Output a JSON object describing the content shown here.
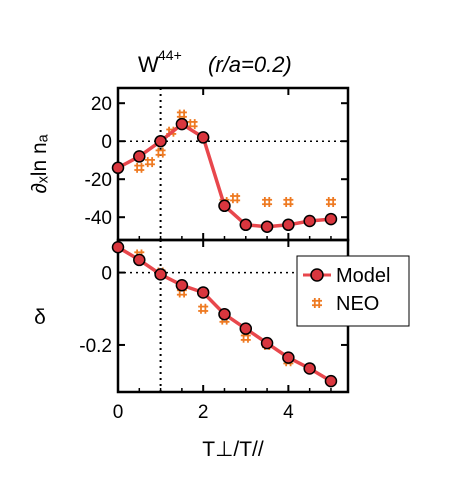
{
  "title": {
    "main": "W",
    "superscript": "44+",
    "qualifier": "(r/a=0.2)"
  },
  "colors": {
    "model_line": "#e8474c",
    "model_marker_fill": "#d9363e",
    "neo_marker": "#ee7a22",
    "axes": "#000000"
  },
  "chart_data": [
    {
      "type": "line",
      "panel": "top",
      "ylabel": "∂ₓln nₐ",
      "xlabel": "",
      "xlim": [
        0,
        5.4
      ],
      "ylim": [
        -52,
        28
      ],
      "xticks": [
        0,
        2,
        4
      ],
      "yticks": [
        20,
        0,
        -20,
        -40
      ],
      "ytick_labels": [
        "20",
        "0",
        "-20",
        "-40"
      ],
      "reference_lines": {
        "x": 1,
        "y": 0
      },
      "series": [
        {
          "name": "Model",
          "marker": "circle",
          "x": [
            0,
            0.5,
            1,
            1.5,
            2,
            2.5,
            3,
            3.5,
            4,
            4.5,
            5
          ],
          "y": [
            -14,
            -8,
            0,
            9,
            2,
            -34,
            -44,
            -45,
            -44,
            -42,
            -41
          ]
        },
        {
          "name": "NEO",
          "marker": "hash",
          "x": [
            0.5,
            0.75,
            1,
            1.25,
            1.5,
            1.75,
            2.5,
            2.75,
            3.5,
            4,
            5
          ],
          "y": [
            -14,
            -11,
            -6,
            5,
            14,
            9,
            -32,
            -30,
            -32,
            -32,
            -32
          ]
        }
      ]
    },
    {
      "type": "line",
      "panel": "bottom",
      "ylabel": "δ",
      "xlabel": "T⊥/T//",
      "xlim": [
        0,
        5.4
      ],
      "ylim": [
        -0.33,
        0.09
      ],
      "xticks": [
        0,
        2,
        4
      ],
      "xtick_labels": [
        "0",
        "2",
        "4"
      ],
      "yticks": [
        0,
        -0.2
      ],
      "ytick_labels": [
        "0",
        "-0.2"
      ],
      "reference_lines": {
        "x": 1,
        "y": 0
      },
      "legend": {
        "placement": "top-right",
        "entries": [
          "Model",
          "NEO"
        ]
      },
      "series": [
        {
          "name": "Model",
          "marker": "circle",
          "x": [
            0,
            0.5,
            1,
            1.5,
            2,
            2.5,
            3,
            3.5,
            4,
            4.5,
            5
          ],
          "y": [
            0.07,
            0.035,
            -0.005,
            -0.035,
            -0.055,
            -0.115,
            -0.155,
            -0.195,
            -0.235,
            -0.265,
            -0.3
          ]
        },
        {
          "name": "NEO",
          "marker": "hash",
          "x": [
            0.5,
            1,
            1.5,
            2,
            2.5,
            3,
            3.5,
            4,
            5
          ],
          "y": [
            0.05,
            0.0,
            -0.055,
            -0.1,
            -0.13,
            -0.18,
            -0.2,
            -0.245,
            -0.3
          ]
        }
      ]
    }
  ]
}
